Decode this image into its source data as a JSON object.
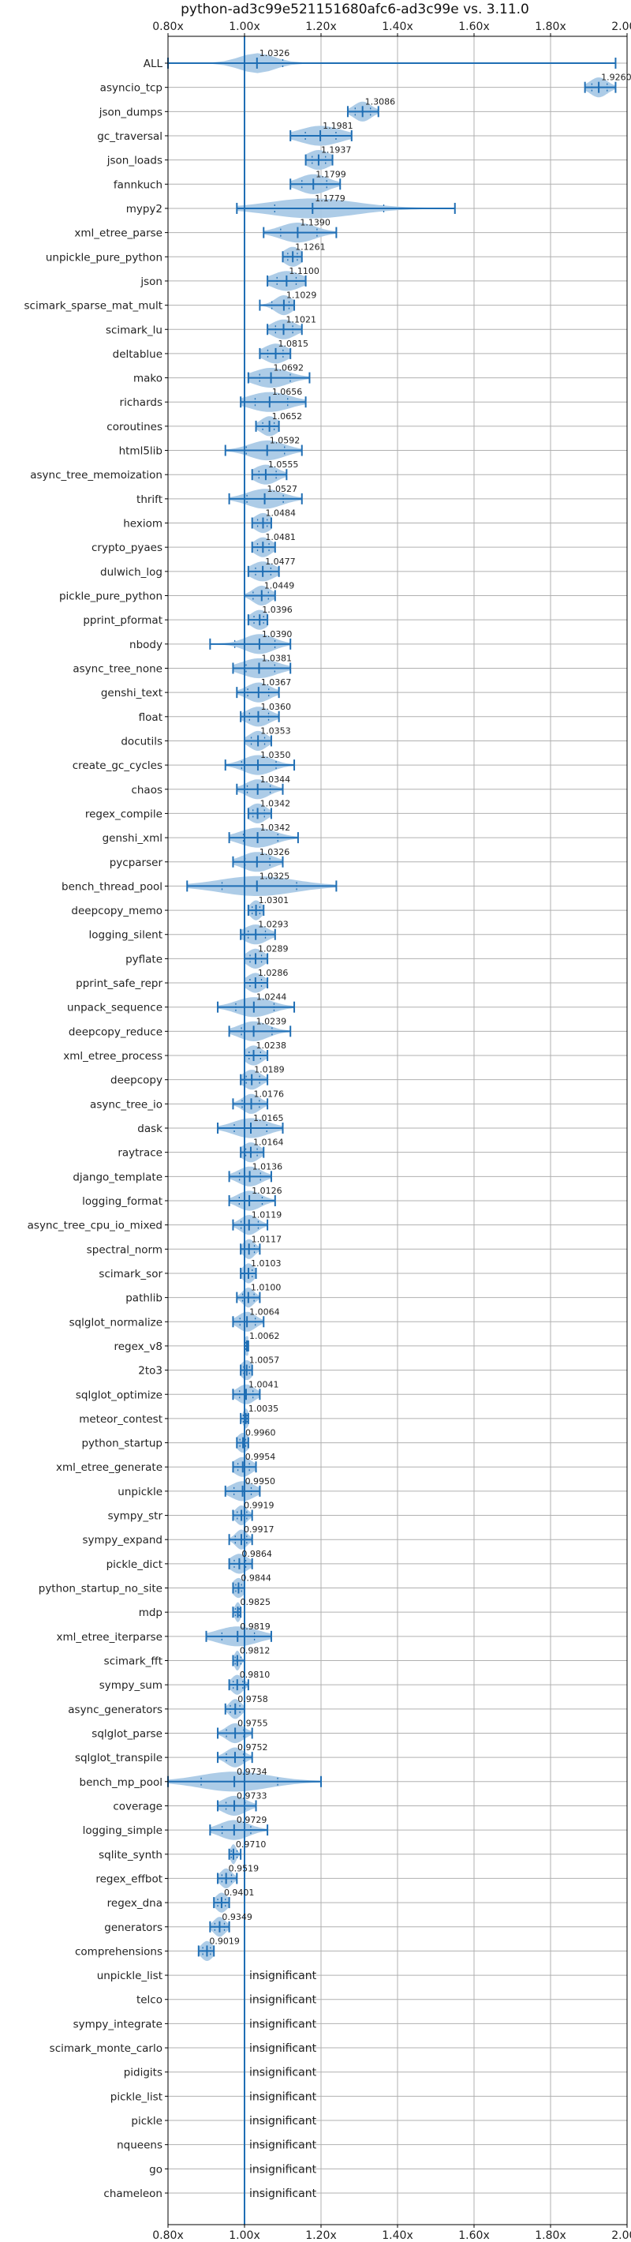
{
  "chart_data": {
    "type": "violin",
    "title": "python-ad3c99e521151680afc6-ad3c99e vs. 3.11.0",
    "xlim": [
      0.8,
      2.0
    ],
    "xticks": [
      "0.80x",
      "1.00x",
      "1.20x",
      "1.40x",
      "1.60x",
      "1.80x",
      "2.00x"
    ],
    "xtick_values": [
      0.8,
      1.0,
      1.2,
      1.4,
      1.6,
      1.8,
      2.0
    ],
    "reference_line": 1.0,
    "grid": true,
    "insignificant_label": "insignificant",
    "benchmarks": [
      {
        "name": "ALL",
        "median": 1.0326,
        "label": "1.0326",
        "min": 0.78,
        "max": 1.97,
        "q1": 1.0,
        "q3": 1.1,
        "spread": 0.06
      },
      {
        "name": "asyncio_tcp",
        "median": 1.926,
        "label": "1.9260",
        "min": 1.89,
        "max": 1.97,
        "spread": 0.03
      },
      {
        "name": "json_dumps",
        "median": 1.3086,
        "label": "1.3086",
        "min": 1.27,
        "max": 1.35,
        "spread": 0.03
      },
      {
        "name": "gc_traversal",
        "median": 1.1981,
        "label": "1.1981",
        "min": 1.12,
        "max": 1.28,
        "spread": 0.07
      },
      {
        "name": "json_loads",
        "median": 1.1937,
        "label": "1.1937",
        "min": 1.16,
        "max": 1.23,
        "spread": 0.04
      },
      {
        "name": "fannkuch",
        "median": 1.1799,
        "label": "1.1799",
        "min": 1.12,
        "max": 1.25,
        "spread": 0.05
      },
      {
        "name": "mypy2",
        "median": 1.1779,
        "label": "1.1779",
        "min": 0.98,
        "max": 1.55,
        "spread": 0.15
      },
      {
        "name": "xml_etree_parse",
        "median": 1.139,
        "label": "1.1390",
        "min": 1.05,
        "max": 1.24,
        "spread": 0.06
      },
      {
        "name": "unpickle_pure_python",
        "median": 1.1261,
        "label": "1.1261",
        "min": 1.1,
        "max": 1.15,
        "spread": 0.03
      },
      {
        "name": "json",
        "median": 1.11,
        "label": "1.1100",
        "min": 1.06,
        "max": 1.16,
        "spread": 0.05
      },
      {
        "name": "scimark_sparse_mat_mult",
        "median": 1.1029,
        "label": "1.1029",
        "min": 1.04,
        "max": 1.13,
        "spread": 0.03
      },
      {
        "name": "scimark_lu",
        "median": 1.1021,
        "label": "1.1021",
        "min": 1.06,
        "max": 1.15,
        "spread": 0.04
      },
      {
        "name": "deltablue",
        "median": 1.0815,
        "label": "1.0815",
        "min": 1.04,
        "max": 1.12,
        "spread": 0.04
      },
      {
        "name": "mako",
        "median": 1.0692,
        "label": "1.0692",
        "min": 1.01,
        "max": 1.17,
        "spread": 0.06
      },
      {
        "name": "richards",
        "median": 1.0656,
        "label": "1.0656",
        "min": 0.99,
        "max": 1.16,
        "spread": 0.07
      },
      {
        "name": "coroutines",
        "median": 1.0652,
        "label": "1.0652",
        "min": 1.03,
        "max": 1.09,
        "spread": 0.03
      },
      {
        "name": "html5lib",
        "median": 1.0592,
        "label": "1.0592",
        "min": 0.95,
        "max": 1.15,
        "spread": 0.06
      },
      {
        "name": "async_tree_memoization",
        "median": 1.0555,
        "label": "1.0555",
        "min": 1.02,
        "max": 1.11,
        "spread": 0.04
      },
      {
        "name": "thrift",
        "median": 1.0527,
        "label": "1.0527",
        "min": 0.96,
        "max": 1.15,
        "spread": 0.06
      },
      {
        "name": "hexiom",
        "median": 1.0484,
        "label": "1.0484",
        "min": 1.02,
        "max": 1.07,
        "spread": 0.03
      },
      {
        "name": "crypto_pyaes",
        "median": 1.0481,
        "label": "1.0481",
        "min": 1.02,
        "max": 1.08,
        "spread": 0.03
      },
      {
        "name": "dulwich_log",
        "median": 1.0477,
        "label": "1.0477",
        "min": 1.01,
        "max": 1.09,
        "spread": 0.04
      },
      {
        "name": "pickle_pure_python",
        "median": 1.0449,
        "label": "1.0449",
        "min": 1.0,
        "max": 1.08,
        "spread": 0.03
      },
      {
        "name": "pprint_pformat",
        "median": 1.0396,
        "label": "1.0396",
        "min": 1.01,
        "max": 1.06,
        "spread": 0.03
      },
      {
        "name": "nbody",
        "median": 1.039,
        "label": "1.0390",
        "min": 0.91,
        "max": 1.12,
        "spread": 0.05
      },
      {
        "name": "async_tree_none",
        "median": 1.0381,
        "label": "1.0381",
        "min": 0.97,
        "max": 1.12,
        "spread": 0.06
      },
      {
        "name": "genshi_text",
        "median": 1.0367,
        "label": "1.0367",
        "min": 0.98,
        "max": 1.09,
        "spread": 0.04
      },
      {
        "name": "float",
        "median": 1.036,
        "label": "1.0360",
        "min": 0.99,
        "max": 1.09,
        "spread": 0.04
      },
      {
        "name": "docutils",
        "median": 1.0353,
        "label": "1.0353",
        "min": 1.0,
        "max": 1.07,
        "spread": 0.03
      },
      {
        "name": "create_gc_cycles",
        "median": 1.035,
        "label": "1.0350",
        "min": 0.95,
        "max": 1.13,
        "spread": 0.05
      },
      {
        "name": "chaos",
        "median": 1.0344,
        "label": "1.0344",
        "min": 0.98,
        "max": 1.1,
        "spread": 0.04
      },
      {
        "name": "regex_compile",
        "median": 1.0342,
        "label": "1.0342",
        "min": 1.01,
        "max": 1.07,
        "spread": 0.03
      },
      {
        "name": "genshi_xml",
        "median": 1.0342,
        "label": "1.0342",
        "min": 0.96,
        "max": 1.14,
        "spread": 0.06
      },
      {
        "name": "pycparser",
        "median": 1.0326,
        "label": "1.0326",
        "min": 0.97,
        "max": 1.1,
        "spread": 0.05
      },
      {
        "name": "bench_thread_pool",
        "median": 1.0325,
        "label": "1.0325",
        "min": 0.85,
        "max": 1.24,
        "spread": 0.13
      },
      {
        "name": "deepcopy_memo",
        "median": 1.0301,
        "label": "1.0301",
        "min": 1.01,
        "max": 1.05,
        "spread": 0.02
      },
      {
        "name": "logging_silent",
        "median": 1.0293,
        "label": "1.0293",
        "min": 0.99,
        "max": 1.08,
        "spread": 0.04
      },
      {
        "name": "pyflate",
        "median": 1.0289,
        "label": "1.0289",
        "min": 1.0,
        "max": 1.06,
        "spread": 0.03
      },
      {
        "name": "pprint_safe_repr",
        "median": 1.0286,
        "label": "1.0286",
        "min": 1.0,
        "max": 1.06,
        "spread": 0.03
      },
      {
        "name": "unpack_sequence",
        "median": 1.0244,
        "label": "1.0244",
        "min": 0.93,
        "max": 1.13,
        "spread": 0.06
      },
      {
        "name": "deepcopy_reduce",
        "median": 1.0239,
        "label": "1.0239",
        "min": 0.96,
        "max": 1.12,
        "spread": 0.05
      },
      {
        "name": "xml_etree_process",
        "median": 1.0238,
        "label": "1.0238",
        "min": 1.0,
        "max": 1.06,
        "spread": 0.03
      },
      {
        "name": "deepcopy",
        "median": 1.0189,
        "label": "1.0189",
        "min": 0.99,
        "max": 1.06,
        "spread": 0.03
      },
      {
        "name": "async_tree_io",
        "median": 1.0176,
        "label": "1.0176",
        "min": 0.97,
        "max": 1.06,
        "spread": 0.03
      },
      {
        "name": "dask",
        "median": 1.0165,
        "label": "1.0165",
        "min": 0.93,
        "max": 1.1,
        "spread": 0.06
      },
      {
        "name": "raytrace",
        "median": 1.0164,
        "label": "1.0164",
        "min": 0.99,
        "max": 1.05,
        "spread": 0.03
      },
      {
        "name": "django_template",
        "median": 1.0136,
        "label": "1.0136",
        "min": 0.96,
        "max": 1.07,
        "spread": 0.04
      },
      {
        "name": "logging_format",
        "median": 1.0126,
        "label": "1.0126",
        "min": 0.96,
        "max": 1.08,
        "spread": 0.04
      },
      {
        "name": "async_tree_cpu_io_mixed",
        "median": 1.0119,
        "label": "1.0119",
        "min": 0.97,
        "max": 1.06,
        "spread": 0.03
      },
      {
        "name": "spectral_norm",
        "median": 1.0117,
        "label": "1.0117",
        "min": 0.99,
        "max": 1.04,
        "spread": 0.02
      },
      {
        "name": "scimark_sor",
        "median": 1.0103,
        "label": "1.0103",
        "min": 0.99,
        "max": 1.03,
        "spread": 0.02
      },
      {
        "name": "pathlib",
        "median": 1.01,
        "label": "1.0100",
        "min": 0.98,
        "max": 1.04,
        "spread": 0.02
      },
      {
        "name": "sqlglot_normalize",
        "median": 1.0064,
        "label": "1.0064",
        "min": 0.97,
        "max": 1.05,
        "spread": 0.03
      },
      {
        "name": "regex_v8",
        "median": 1.0062,
        "label": "1.0062",
        "min": 1.0,
        "max": 1.01,
        "spread": 0.01
      },
      {
        "name": "2to3",
        "median": 1.0057,
        "label": "1.0057",
        "min": 0.99,
        "max": 1.02,
        "spread": 0.02
      },
      {
        "name": "sqlglot_optimize",
        "median": 1.0041,
        "label": "1.0041",
        "min": 0.97,
        "max": 1.04,
        "spread": 0.03
      },
      {
        "name": "meteor_contest",
        "median": 1.0035,
        "label": "1.0035",
        "min": 0.99,
        "max": 1.01,
        "spread": 0.01
      },
      {
        "name": "python_startup",
        "median": 0.996,
        "label": "0.9960",
        "min": 0.98,
        "max": 1.01,
        "spread": 0.02
      },
      {
        "name": "xml_etree_generate",
        "median": 0.9954,
        "label": "0.9954",
        "min": 0.97,
        "max": 1.03,
        "spread": 0.03
      },
      {
        "name": "unpickle",
        "median": 0.995,
        "label": "0.9950",
        "min": 0.95,
        "max": 1.04,
        "spread": 0.04
      },
      {
        "name": "sympy_str",
        "median": 0.9919,
        "label": "0.9919",
        "min": 0.97,
        "max": 1.02,
        "spread": 0.02
      },
      {
        "name": "sympy_expand",
        "median": 0.9917,
        "label": "0.9917",
        "min": 0.96,
        "max": 1.02,
        "spread": 0.02
      },
      {
        "name": "pickle_dict",
        "median": 0.9864,
        "label": "0.9864",
        "min": 0.96,
        "max": 1.02,
        "spread": 0.03
      },
      {
        "name": "python_startup_no_site",
        "median": 0.9844,
        "label": "0.9844",
        "min": 0.97,
        "max": 1.0,
        "spread": 0.02
      },
      {
        "name": "mdp",
        "median": 0.9825,
        "label": "0.9825",
        "min": 0.97,
        "max": 0.99,
        "spread": 0.01
      },
      {
        "name": "xml_etree_iterparse",
        "median": 0.9819,
        "label": "0.9819",
        "min": 0.9,
        "max": 1.07,
        "spread": 0.07
      },
      {
        "name": "scimark_fft",
        "median": 0.9812,
        "label": "0.9812",
        "min": 0.97,
        "max": 1.0,
        "spread": 0.01
      },
      {
        "name": "sympy_sum",
        "median": 0.981,
        "label": "0.9810",
        "min": 0.96,
        "max": 1.01,
        "spread": 0.02
      },
      {
        "name": "async_generators",
        "median": 0.9758,
        "label": "0.9758",
        "min": 0.95,
        "max": 1.0,
        "spread": 0.02
      },
      {
        "name": "sqlglot_parse",
        "median": 0.9755,
        "label": "0.9755",
        "min": 0.93,
        "max": 1.02,
        "spread": 0.03
      },
      {
        "name": "sqlglot_transpile",
        "median": 0.9752,
        "label": "0.9752",
        "min": 0.93,
        "max": 1.02,
        "spread": 0.03
      },
      {
        "name": "bench_mp_pool",
        "median": 0.9734,
        "label": "0.9734",
        "min": 0.78,
        "max": 1.2,
        "spread": 0.12
      },
      {
        "name": "coverage",
        "median": 0.9733,
        "label": "0.9733",
        "min": 0.93,
        "max": 1.03,
        "spread": 0.04
      },
      {
        "name": "logging_simple",
        "median": 0.9729,
        "label": "0.9729",
        "min": 0.91,
        "max": 1.06,
        "spread": 0.05
      },
      {
        "name": "sqlite_synth",
        "median": 0.971,
        "label": "0.9710",
        "min": 0.96,
        "max": 0.99,
        "spread": 0.01
      },
      {
        "name": "regex_effbot",
        "median": 0.9519,
        "label": "0.9519",
        "min": 0.93,
        "max": 0.98,
        "spread": 0.02
      },
      {
        "name": "regex_dna",
        "median": 0.9401,
        "label": "0.9401",
        "min": 0.92,
        "max": 0.96,
        "spread": 0.02
      },
      {
        "name": "generators",
        "median": 0.9349,
        "label": "0.9349",
        "min": 0.91,
        "max": 0.96,
        "spread": 0.02
      },
      {
        "name": "comprehensions",
        "median": 0.9019,
        "label": "0.9019",
        "min": 0.88,
        "max": 0.92,
        "spread": 0.02
      },
      {
        "name": "unpickle_list",
        "insignificant": true
      },
      {
        "name": "telco",
        "insignificant": true
      },
      {
        "name": "sympy_integrate",
        "insignificant": true
      },
      {
        "name": "scimark_monte_carlo",
        "insignificant": true
      },
      {
        "name": "pidigits",
        "insignificant": true
      },
      {
        "name": "pickle_list",
        "insignificant": true
      },
      {
        "name": "pickle",
        "insignificant": true
      },
      {
        "name": "nqueens",
        "insignificant": true
      },
      {
        "name": "go",
        "insignificant": true
      },
      {
        "name": "chameleon",
        "insignificant": true
      }
    ]
  },
  "colors": {
    "violin": "#a9c9e6",
    "line": "#1f6eb4",
    "grid": "#b0b0b0",
    "axis": "#000000"
  }
}
